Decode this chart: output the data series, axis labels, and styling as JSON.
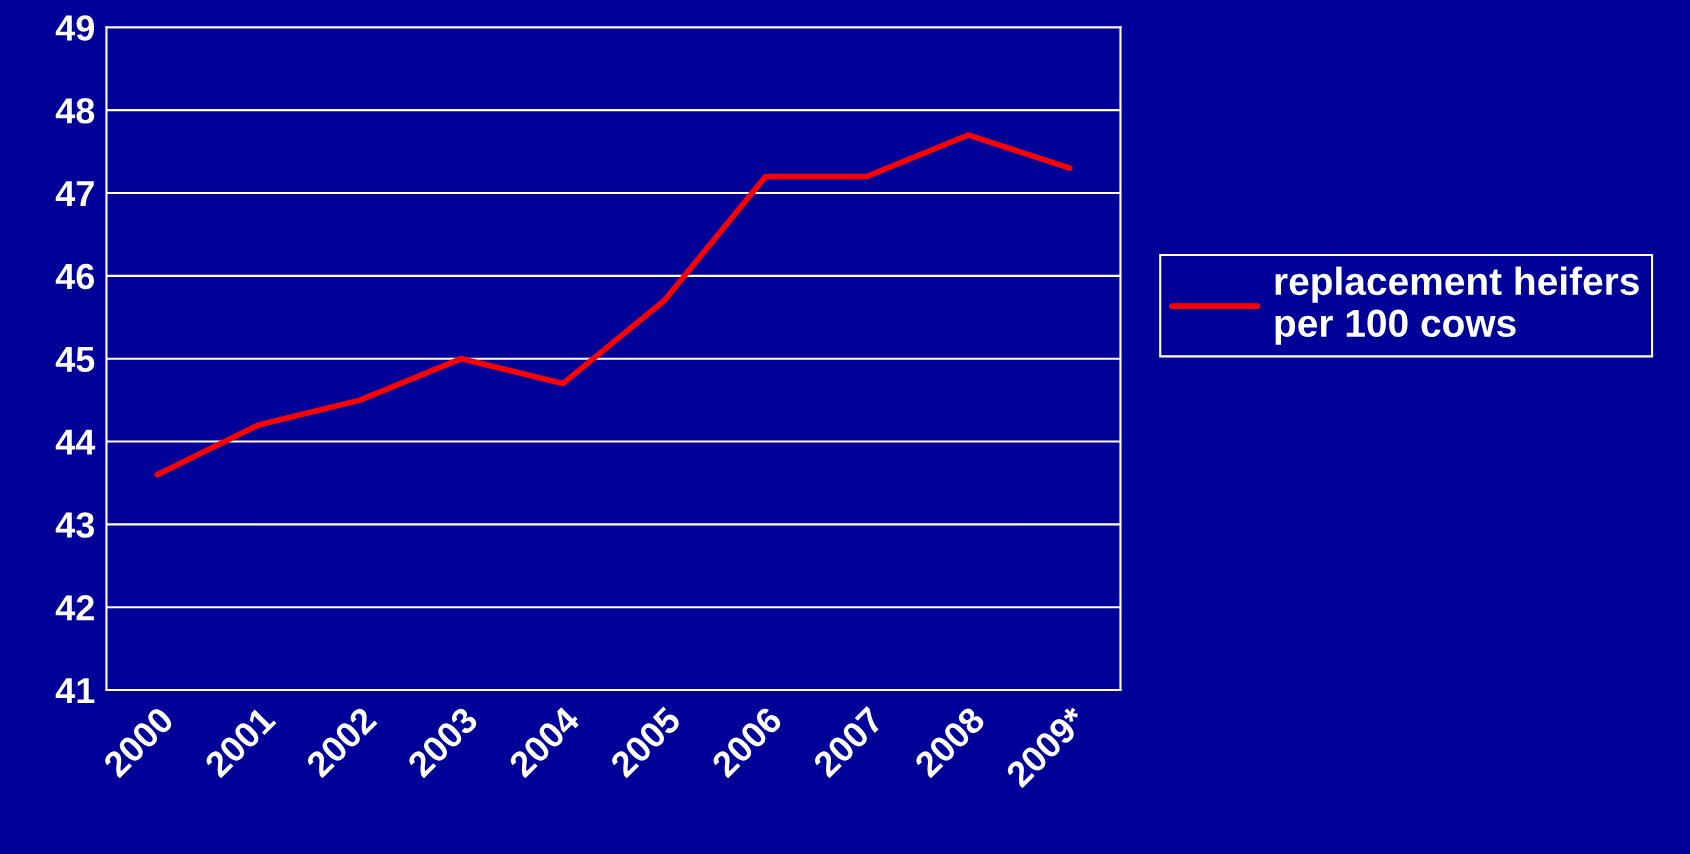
{
  "chart_data": {
    "type": "line",
    "categories": [
      "2000",
      "2001",
      "2002",
      "2003",
      "2004",
      "2005",
      "2006",
      "2007",
      "2008",
      "2009*"
    ],
    "series": [
      {
        "name": "replacement heifers\nper 100 cows",
        "color": "#ff0000",
        "values": [
          43.6,
          44.2,
          44.5,
          45.0,
          44.7,
          45.7,
          47.2,
          47.2,
          47.7,
          47.3
        ]
      }
    ],
    "ylim": [
      41,
      49
    ],
    "yticks": [
      41,
      42,
      43,
      44,
      45,
      46,
      47,
      48,
      49
    ],
    "grid": "y",
    "legend": "right",
    "marker": "none",
    "line_style": "solid"
  }
}
